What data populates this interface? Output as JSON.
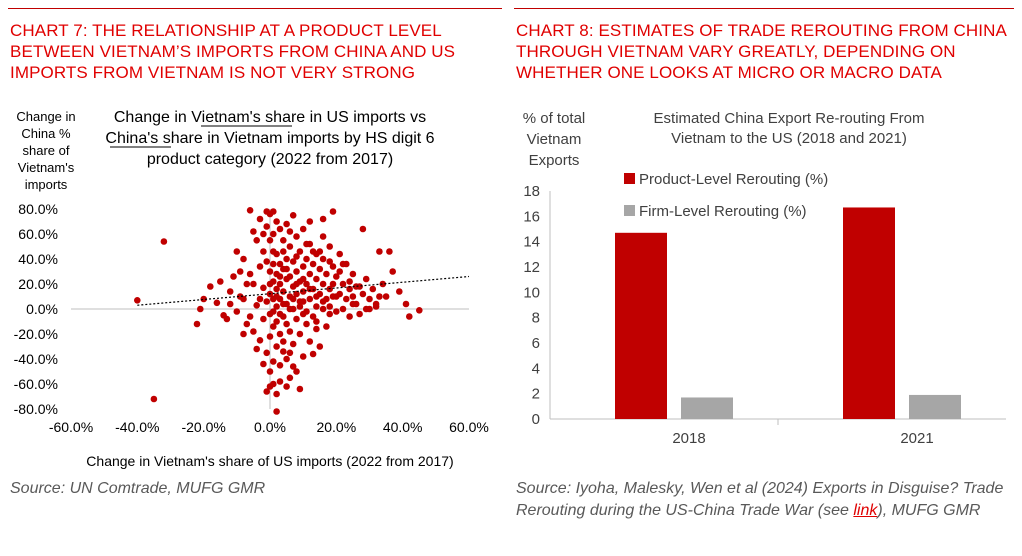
{
  "left": {
    "title": "CHART 7: THE RELATIONSHIP AT A PRODUCT LEVEL BETWEEN VIETNAM’S IMPORTS FROM CHINA AND US IMPORTS FROM VIETNAM IS NOT VERY STRONG",
    "source": "Source: UN Comtrade, MUFG GMR"
  },
  "right": {
    "title": "CHART 8: ESTIMATES OF TRADE REROUTING FROM CHINA THROUGH VIETNAM VARY GREATLY, DEPENDING ON WHETHER ONE LOOKS AT MICRO OR MACRO DATA",
    "source_pre": "Source: Iyoha, Malesky, Wen et al (2024) Exports in Disguise? Trade Rerouting during the US-China Trade War (see ",
    "source_link": "link",
    "source_post": "), MUFG GMR"
  },
  "colors": {
    "accent": "#c00000",
    "grey": "#a6a6a6",
    "title_red": "#e00000"
  },
  "chart_data": [
    {
      "type": "scatter",
      "title_lines": [
        "Change in Vietnam's share in US imports vs",
        "China's share in Vietnam imports by HS digit 6",
        "product category (2022 from 2017)"
      ],
      "xlabel": "Change in Vietnam's share of US imports (2022 from 2017)",
      "ylabel_lines": [
        "Change in",
        "China  %",
        "share of",
        "Vietnam's",
        "imports"
      ],
      "xlim": [
        -60,
        60
      ],
      "ylim": [
        -80,
        80
      ],
      "x_ticks": [
        "-60.0%",
        "-40.0%",
        "-20.0%",
        "0.0%",
        "20.0%",
        "40.0%",
        "60.0%"
      ],
      "y_ticks": [
        "80.0%",
        "60.0%",
        "40.0%",
        "20.0%",
        "0.0%",
        "-20.0%",
        "-40.0%",
        "-60.0%",
        "-80.0%"
      ],
      "trendline": {
        "x": [
          -40,
          60
        ],
        "y": [
          3,
          26
        ],
        "style": "dotted"
      },
      "series": [
        {
          "color": "#c00000",
          "points": [
            [
              -35,
              -72
            ],
            [
              -40,
              7
            ],
            [
              -32,
              54
            ],
            [
              -22,
              -12
            ],
            [
              -21,
              0
            ],
            [
              -20,
              8
            ],
            [
              -18,
              18
            ],
            [
              -16,
              5
            ],
            [
              -14,
              -5
            ],
            [
              -12,
              14
            ],
            [
              -11,
              26
            ],
            [
              -10,
              46
            ],
            [
              -9,
              10
            ],
            [
              -8,
              40
            ],
            [
              -8,
              -20
            ],
            [
              -7,
              -12
            ],
            [
              -6,
              79
            ],
            [
              -5,
              62
            ],
            [
              -5,
              20
            ],
            [
              -5,
              -18
            ],
            [
              -4,
              55
            ],
            [
              -4,
              3
            ],
            [
              -3,
              72
            ],
            [
              -3,
              34
            ],
            [
              -3,
              -25
            ],
            [
              -2,
              46
            ],
            [
              -2,
              17
            ],
            [
              -2,
              -8
            ],
            [
              -1,
              78
            ],
            [
              -1,
              66
            ],
            [
              -1,
              38
            ],
            [
              -1,
              6
            ],
            [
              -1,
              -35
            ],
            [
              0,
              76
            ],
            [
              0,
              55
            ],
            [
              0,
              30
            ],
            [
              0,
              12
            ],
            [
              0,
              -4
            ],
            [
              0,
              -22
            ],
            [
              0,
              -50
            ],
            [
              0,
              -62
            ],
            [
              1,
              78
            ],
            [
              1,
              60
            ],
            [
              1,
              46
            ],
            [
              1,
              22
            ],
            [
              1,
              8
            ],
            [
              1,
              -14
            ],
            [
              1,
              -42
            ],
            [
              1,
              -60
            ],
            [
              2,
              70
            ],
            [
              2,
              44
            ],
            [
              2,
              28
            ],
            [
              2,
              16
            ],
            [
              2,
              2
            ],
            [
              2,
              -10
            ],
            [
              2,
              -30
            ],
            [
              2,
              -68
            ],
            [
              3,
              64
            ],
            [
              3,
              36
            ],
            [
              3,
              20
            ],
            [
              3,
              8
            ],
            [
              3,
              -20
            ],
            [
              3,
              -45
            ],
            [
              4,
              55
            ],
            [
              4,
              32
            ],
            [
              4,
              14
            ],
            [
              4,
              -6
            ],
            [
              4,
              -26
            ],
            [
              5,
              68
            ],
            [
              5,
              40
            ],
            [
              5,
              24
            ],
            [
              5,
              4
            ],
            [
              5,
              -12
            ],
            [
              5,
              -40
            ],
            [
              6,
              50
            ],
            [
              6,
              26
            ],
            [
              6,
              10
            ],
            [
              6,
              -18
            ],
            [
              6,
              -55
            ],
            [
              7,
              75
            ],
            [
              7,
              38
            ],
            [
              7,
              18
            ],
            [
              7,
              0
            ],
            [
              7,
              -28
            ],
            [
              8,
              58
            ],
            [
              8,
              30
            ],
            [
              8,
              12
            ],
            [
              8,
              -8
            ],
            [
              8,
              -50
            ],
            [
              9,
              46
            ],
            [
              9,
              22
            ],
            [
              9,
              6
            ],
            [
              9,
              -20
            ],
            [
              10,
              64
            ],
            [
              10,
              34
            ],
            [
              10,
              14
            ],
            [
              10,
              -4
            ],
            [
              10,
              -38
            ],
            [
              11,
              40
            ],
            [
              11,
              20
            ],
            [
              11,
              -12
            ],
            [
              12,
              52
            ],
            [
              12,
              28
            ],
            [
              12,
              8
            ],
            [
              12,
              -26
            ],
            [
              13,
              36
            ],
            [
              13,
              16
            ],
            [
              13,
              -6
            ],
            [
              14,
              44
            ],
            [
              14,
              24
            ],
            [
              14,
              2
            ],
            [
              14,
              -16
            ],
            [
              15,
              32
            ],
            [
              15,
              12
            ],
            [
              15,
              -30
            ],
            [
              16,
              72
            ],
            [
              16,
              40
            ],
            [
              16,
              20
            ],
            [
              16,
              0
            ],
            [
              17,
              28
            ],
            [
              17,
              8
            ],
            [
              17,
              -14
            ],
            [
              18,
              50
            ],
            [
              18,
              16
            ],
            [
              18,
              -4
            ],
            [
              19,
              78
            ],
            [
              19,
              34
            ],
            [
              19,
              10
            ],
            [
              20,
              26
            ],
            [
              20,
              -2
            ],
            [
              21,
              44
            ],
            [
              21,
              12
            ],
            [
              22,
              20
            ],
            [
              22,
              0
            ],
            [
              23,
              36
            ],
            [
              23,
              8
            ],
            [
              24,
              16
            ],
            [
              24,
              -6
            ],
            [
              25,
              28
            ],
            [
              25,
              10
            ],
            [
              26,
              4
            ],
            [
              27,
              18
            ],
            [
              27,
              -4
            ],
            [
              28,
              12
            ],
            [
              29,
              24
            ],
            [
              29,
              0
            ],
            [
              30,
              8
            ],
            [
              31,
              16
            ],
            [
              32,
              2
            ],
            [
              33,
              10
            ],
            [
              34,
              20
            ],
            [
              35,
              10
            ],
            [
              28,
              64
            ],
            [
              33,
              46
            ],
            [
              36,
              46
            ],
            [
              37,
              30
            ],
            [
              39,
              14
            ],
            [
              41,
              4
            ],
            [
              42,
              -6
            ],
            [
              45,
              -1
            ],
            [
              12,
              70
            ],
            [
              6,
              -35
            ],
            [
              9,
              -64
            ],
            [
              2,
              -82
            ],
            [
              -1,
              -66
            ],
            [
              3,
              -58
            ],
            [
              5,
              -62
            ],
            [
              11,
              52
            ],
            [
              15,
              46
            ],
            [
              18,
              38
            ],
            [
              21,
              30
            ],
            [
              -2,
              -44
            ],
            [
              4,
              -34
            ],
            [
              7,
              -46
            ],
            [
              13,
              -36
            ],
            [
              -6,
              28
            ],
            [
              -6,
              -6
            ],
            [
              -4,
              -32
            ],
            [
              -3,
              8
            ],
            [
              -2,
              60
            ],
            [
              1,
              36
            ],
            [
              4,
              46
            ],
            [
              6,
              62
            ],
            [
              8,
              42
            ],
            [
              10,
              24
            ],
            [
              13,
              46
            ],
            [
              16,
              58
            ],
            [
              19,
              20
            ],
            [
              22,
              36
            ],
            [
              25,
              4
            ],
            [
              -12,
              4
            ],
            [
              -9,
              30
            ],
            [
              -7,
              20
            ],
            [
              -10,
              -2
            ],
            [
              -8,
              8
            ],
            [
              -15,
              22
            ],
            [
              -13,
              -8
            ],
            [
              3,
              26
            ],
            [
              5,
              32
            ],
            [
              7,
              8
            ],
            [
              9,
              2
            ],
            [
              11,
              -2
            ],
            [
              14,
              10
            ],
            [
              16,
              6
            ],
            [
              18,
              2
            ],
            [
              20,
              10
            ],
            [
              24,
              22
            ],
            [
              26,
              18
            ],
            [
              30,
              0
            ],
            [
              32,
              4
            ],
            [
              0,
              20
            ],
            [
              1,
              -2
            ],
            [
              2,
              10
            ],
            [
              3,
              -4
            ],
            [
              4,
              4
            ],
            [
              6,
              0
            ],
            [
              8,
              20
            ],
            [
              10,
              6
            ],
            [
              12,
              16
            ],
            [
              14,
              -10
            ]
          ]
        }
      ]
    },
    {
      "type": "bar",
      "title_lines": [
        "Estimated China Export Re-routing From",
        "Vietnam to the US (2018 and 2021)"
      ],
      "ylabel_lines": [
        "% of total",
        "Vietnam",
        "Exports"
      ],
      "categories": [
        "2018",
        "2021"
      ],
      "ylim": [
        0,
        18
      ],
      "y_ticks": [
        "0",
        "2",
        "4",
        "6",
        "8",
        "10",
        "12",
        "14",
        "16",
        "18"
      ],
      "legend_position": "top-center",
      "series": [
        {
          "name": "Product-Level Rerouting (%)",
          "color": "#c00000",
          "values": [
            14.7,
            16.7
          ]
        },
        {
          "name": "Firm-Level Rerouting (%)",
          "color": "#a6a6a6",
          "values": [
            1.7,
            1.9
          ]
        }
      ]
    }
  ]
}
